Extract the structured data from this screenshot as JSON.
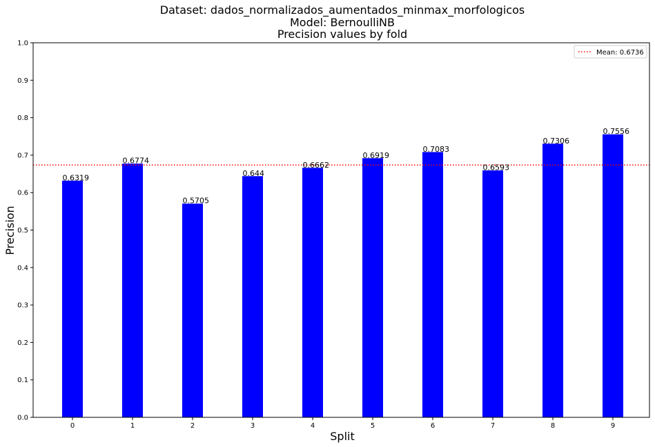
{
  "chart_data": {
    "type": "bar",
    "title_lines": [
      "Dataset: dados_normalizados_aumentados_minmax_morfologicos",
      "Model: BernoulliNB",
      "Precision values by fold"
    ],
    "xlabel": "Split",
    "ylabel": "Precision",
    "categories": [
      "0",
      "1",
      "2",
      "3",
      "4",
      "5",
      "6",
      "7",
      "8",
      "9"
    ],
    "values": [
      0.6319,
      0.6774,
      0.5705,
      0.644,
      0.6662,
      0.6919,
      0.7083,
      0.6593,
      0.7306,
      0.7556
    ],
    "value_labels": [
      "0.6319",
      "0.6774",
      "0.5705",
      "0.644",
      "0.6662",
      "0.6919",
      "0.7083",
      "0.6593",
      "0.7306",
      "0.7556"
    ],
    "ylim": [
      0,
      1.0
    ],
    "yticks": [
      0.0,
      0.1,
      0.2,
      0.3,
      0.4,
      0.5,
      0.6,
      0.7,
      0.8,
      0.9,
      1.0
    ],
    "ytick_labels": [
      "0.0",
      "0.1",
      "0.2",
      "0.3",
      "0.4",
      "0.5",
      "0.6",
      "0.7",
      "0.8",
      "0.9",
      "1.0"
    ],
    "bar_color": "#0000ff",
    "mean": {
      "value": 0.6736,
      "label": "Mean: 0.6736",
      "color": "#ff0000",
      "style": "dotted"
    },
    "grid": false,
    "legend_position": "top-right"
  }
}
